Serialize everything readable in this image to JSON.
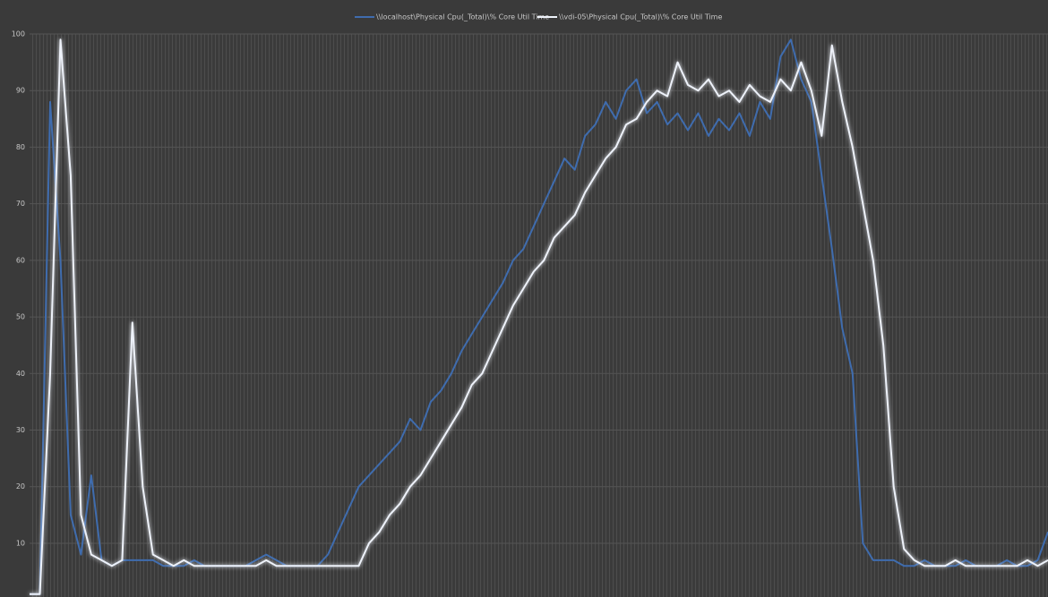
{
  "chart_data": {
    "type": "line",
    "categories": [
      null,
      null,
      null,
      null,
      null,
      null,
      null,
      null,
      null,
      null,
      null,
      null,
      null,
      null,
      null,
      null,
      null,
      null,
      null,
      null,
      null,
      null,
      null,
      null,
      null,
      null,
      null,
      null,
      null,
      null,
      null,
      null,
      null,
      null,
      null,
      null,
      null,
      null,
      null,
      null,
      null,
      null,
      null,
      null,
      null,
      null,
      null,
      null,
      null,
      null,
      null,
      null,
      null,
      null,
      null,
      null,
      null,
      null,
      null,
      null,
      null,
      null,
      null,
      null,
      null,
      null,
      null,
      null,
      null,
      null,
      null,
      null,
      null,
      null,
      null,
      null,
      null,
      null,
      null,
      null,
      null,
      null,
      null,
      null,
      null,
      null,
      null,
      null,
      null,
      null,
      null,
      null,
      null,
      null,
      null,
      null,
      null,
      null,
      null,
      null
    ],
    "series": [
      {
        "name": "\\\\localhost\\Physical Cpu(_Total)\\% Core Util Time",
        "color": "#3f6cae",
        "values": [
          1,
          1,
          88,
          60,
          15,
          8,
          22,
          7,
          6,
          7,
          7,
          7,
          7,
          6,
          6,
          6,
          7,
          6,
          6,
          6,
          6,
          6,
          7,
          8,
          7,
          6,
          6,
          6,
          6,
          8,
          12,
          16,
          20,
          22,
          24,
          26,
          28,
          32,
          30,
          35,
          37,
          40,
          44,
          47,
          50,
          53,
          56,
          60,
          62,
          66,
          70,
          74,
          78,
          76,
          82,
          84,
          88,
          85,
          90,
          92,
          86,
          88,
          84,
          86,
          83,
          86,
          82,
          85,
          83,
          86,
          82,
          88,
          85,
          96,
          99,
          92,
          88,
          75,
          62,
          48,
          40,
          10,
          7,
          7,
          7,
          6,
          6,
          7,
          6,
          6,
          6,
          7,
          6,
          6,
          6,
          7,
          6,
          6,
          7,
          12
        ]
      },
      {
        "name": "\\\\vdi-05\\Physical Cpu(_Total)\\% Core Util Time",
        "color": "#eef2fa",
        "values": [
          1,
          1,
          40,
          99,
          75,
          15,
          8,
          7,
          6,
          7,
          49,
          20,
          8,
          7,
          6,
          7,
          6,
          6,
          6,
          6,
          6,
          6,
          6,
          7,
          6,
          6,
          6,
          6,
          6,
          6,
          6,
          6,
          6,
          10,
          12,
          15,
          17,
          20,
          22,
          25,
          28,
          31,
          34,
          38,
          40,
          44,
          48,
          52,
          55,
          58,
          60,
          64,
          66,
          68,
          72,
          75,
          78,
          80,
          84,
          85,
          88,
          90,
          89,
          95,
          91,
          90,
          92,
          89,
          90,
          88,
          91,
          89,
          88,
          92,
          90,
          95,
          90,
          82,
          98,
          88,
          80,
          70,
          60,
          45,
          20,
          9,
          7,
          6,
          6,
          6,
          7,
          6,
          6,
          6,
          6,
          6,
          6,
          7,
          6,
          7
        ]
      }
    ],
    "ylim": [
      0.5,
      100
    ],
    "yticks": [
      10,
      20,
      30,
      40,
      50,
      60,
      70,
      80,
      90,
      100
    ],
    "grid": true,
    "legend": "top"
  }
}
